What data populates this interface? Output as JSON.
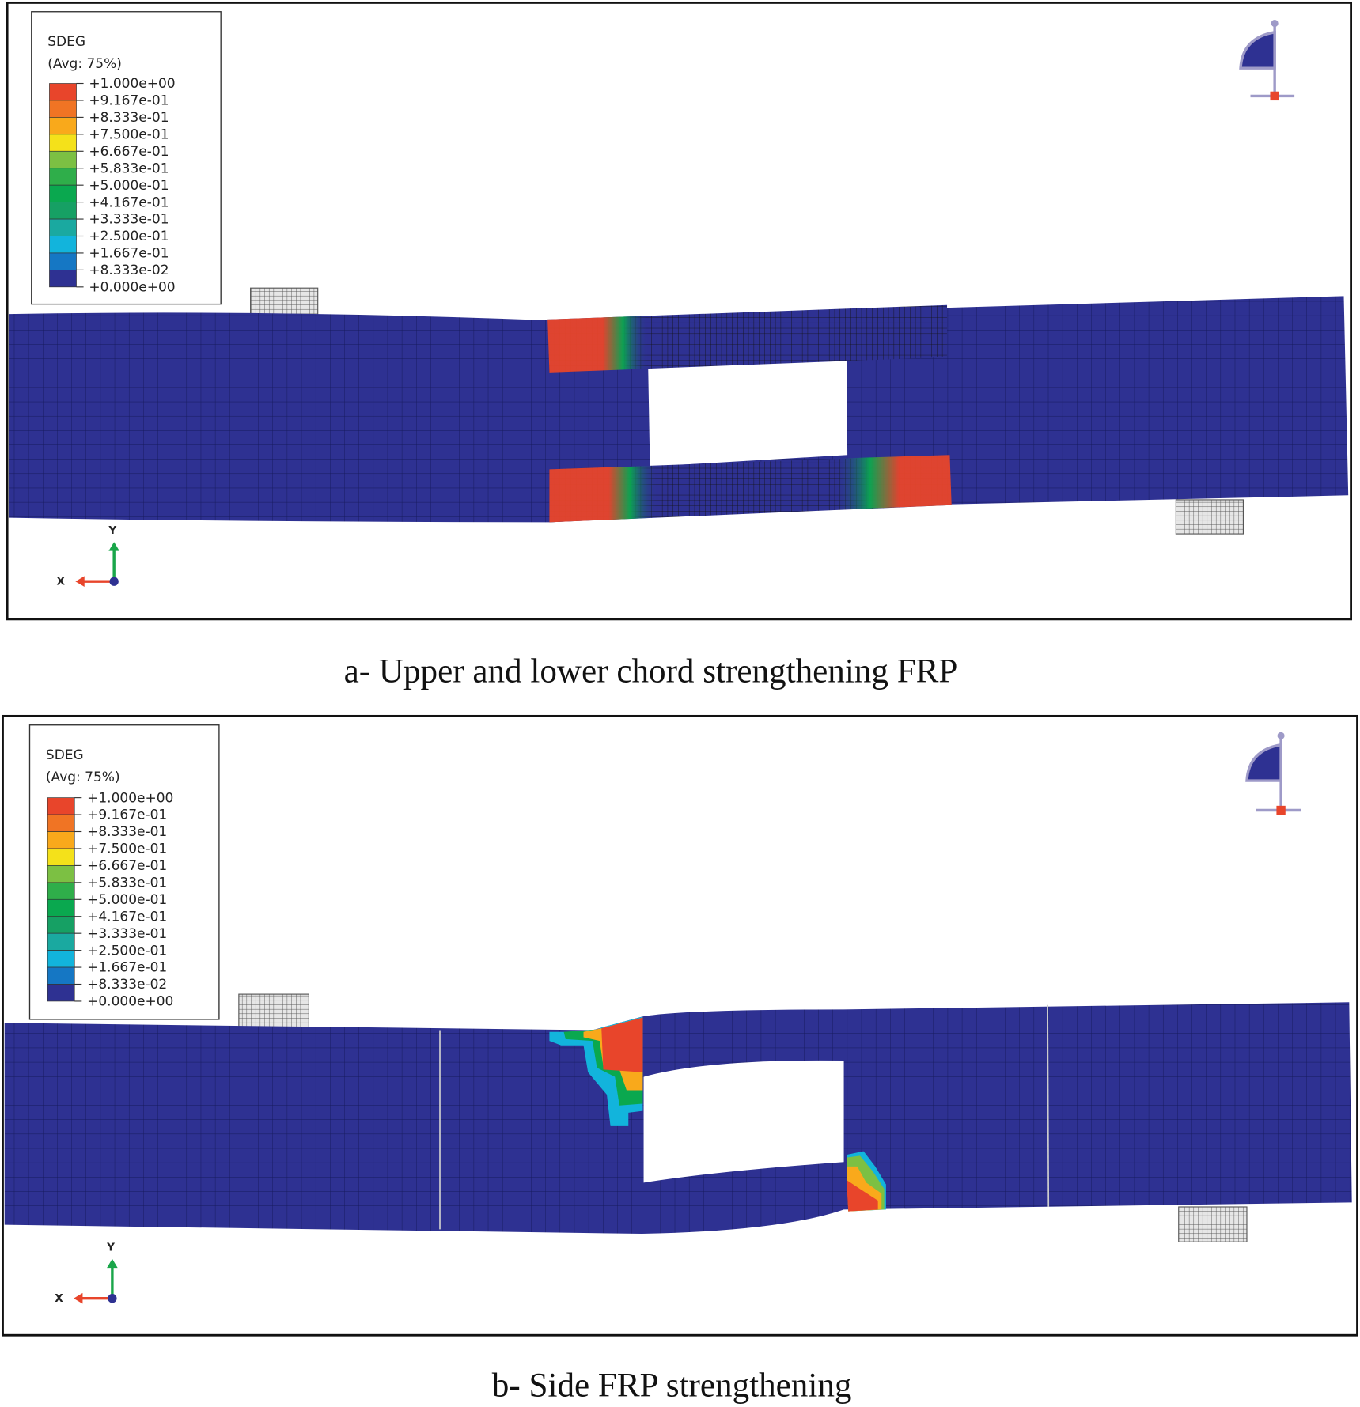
{
  "panels": [
    {
      "caption": "a-   Upper and lower chord strengthening FRP",
      "legend": {
        "title": "SDEG",
        "subtitle": "(Avg: 75%)"
      },
      "triad": {
        "x": "X",
        "y": "Y"
      }
    },
    {
      "caption": "b-   Side FRP strengthening",
      "legend": {
        "title": "SDEG",
        "subtitle": "(Avg: 75%)"
      },
      "triad": {
        "x": "X",
        "y": "Y"
      }
    }
  ],
  "legend_values": [
    "+1.000e+00",
    "+9.167e-01",
    "+8.333e-01",
    "+7.500e-01",
    "+6.667e-01",
    "+5.833e-01",
    "+5.000e-01",
    "+4.167e-01",
    "+3.333e-01",
    "+2.500e-01",
    "+1.667e-01",
    "+8.333e-02",
    "+0.000e+00"
  ],
  "legend_colors": [
    "#e8452b",
    "#f07424",
    "#f9a91b",
    "#f4e11a",
    "#7cc043",
    "#2fae4a",
    "#0aa84f",
    "#16a064",
    "#1aa9a0",
    "#12b4dc",
    "#1577c4",
    "#2e3192"
  ],
  "colors": {
    "beam": "#2e3192",
    "damage": "#e8452b",
    "support": "#9a9a9a"
  }
}
